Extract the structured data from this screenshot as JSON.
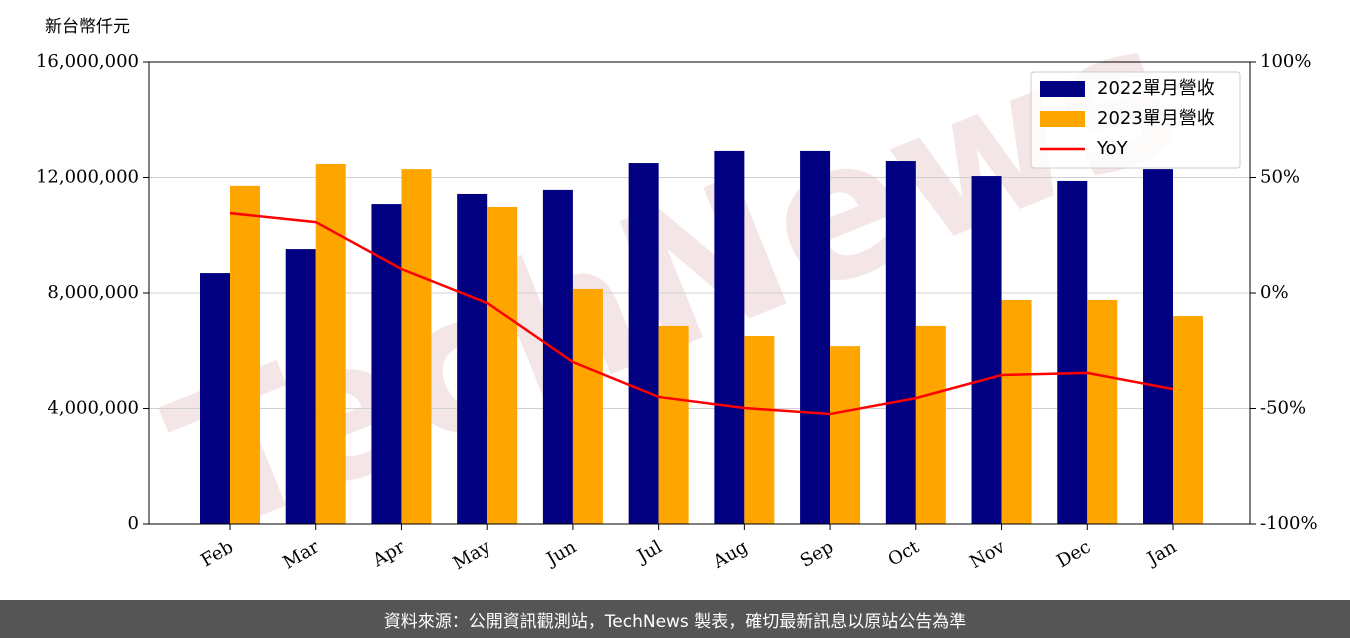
{
  "chart_data": {
    "type": "bar_line",
    "ylabel": "新台幣仟元",
    "categories": [
      "Feb",
      "Mar",
      "Apr",
      "May",
      "Jun",
      "Jul",
      "Aug",
      "Sep",
      "Oct",
      "Nov",
      "Dec",
      "Jan"
    ],
    "series": [
      {
        "name": "2022單月營收",
        "color": "#000080",
        "type": "bar",
        "values": [
          8690000,
          9520000,
          11080000,
          11430000,
          11570000,
          12500000,
          12920000,
          12920000,
          12570000,
          12050000,
          11880000,
          12290000
        ]
      },
      {
        "name": "2023單月營收",
        "color": "#ffa500",
        "type": "bar",
        "values": [
          11710000,
          12470000,
          12290000,
          10980000,
          8140000,
          6860000,
          6510000,
          6160000,
          6860000,
          7760000,
          7760000,
          7200000
        ]
      },
      {
        "name": "YoY",
        "color": "#ff0000",
        "type": "line",
        "axis": "y2",
        "values": [
          34.6,
          30.7,
          10.4,
          -4.3,
          -29.9,
          -45.0,
          -49.8,
          -52.4,
          -45.5,
          -35.5,
          -34.6,
          -41.6
        ]
      }
    ],
    "ylim": [
      0,
      16000000
    ],
    "yticks": [
      0,
      {
        "value": 4000000,
        "label": "4,000,000"
      },
      {
        "value": 8000000,
        "label": "8,000,000"
      },
      {
        "value": 12000000,
        "label": "12,000,000"
      },
      {
        "value": 16000000,
        "label": "16,000,000"
      }
    ],
    "y2lim": [
      -100,
      100
    ],
    "y2ticks": [
      {
        "value": -100,
        "label": "-100%"
      },
      {
        "value": -50,
        "label": "-50%"
      },
      {
        "value": 0,
        "label": "0%"
      },
      {
        "value": 50,
        "label": "50%"
      },
      {
        "value": 100,
        "label": "100%"
      }
    ],
    "grid": true,
    "legend": "upper right",
    "watermark": "TechNews"
  },
  "footer": "資料來源：公開資訊觀測站，TechNews 製表，確切最新訊息以原站公告為準"
}
